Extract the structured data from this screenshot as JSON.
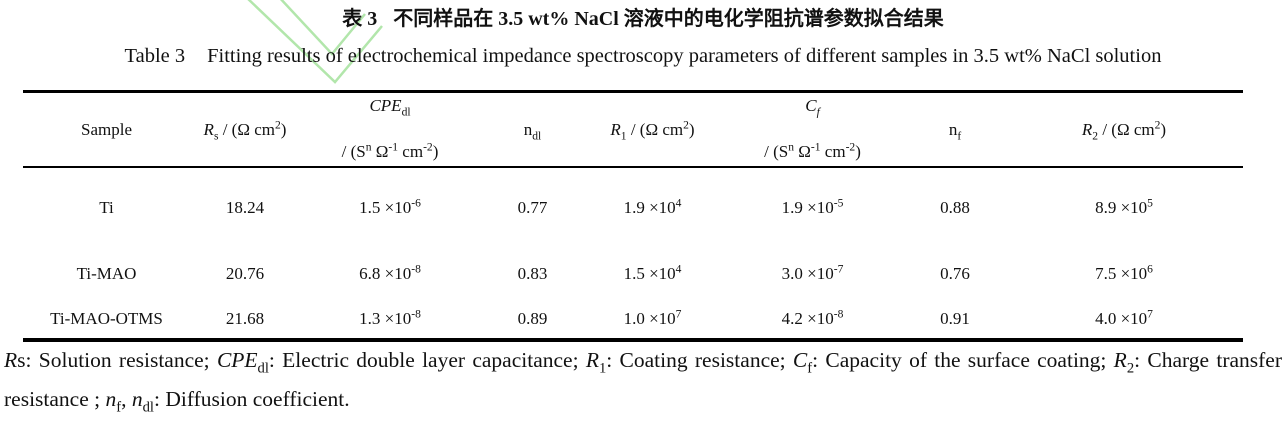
{
  "title": {
    "zh_label": "表 3",
    "zh_text": "不同样品在 3.5 wt% NaCl 溶液中的电化学阻抗谱参数拟合结果",
    "en_label": "Table 3",
    "en_text": "Fitting results of electrochemical impedance spectroscopy parameters of different samples in 3.5 wt% NaCl solution"
  },
  "watermark": {
    "icon": "green-check-watermark",
    "color": "#b2e6ab"
  },
  "table": {
    "headers": {
      "sample": {
        "line1": [
          {
            "t": "Sample"
          }
        ]
      },
      "rs": {
        "line1": [
          {
            "t": "R",
            "i": 1
          },
          {
            "t": "s",
            "sub": 1
          },
          {
            "t": " / (Ω cm"
          },
          {
            "t": "2",
            "sup": 1
          },
          {
            "t": ")"
          }
        ]
      },
      "cpe": {
        "line1": [
          {
            "t": "CPE",
            "i": 1
          },
          {
            "t": "dl",
            "sub": 1
          }
        ],
        "line2": [
          {
            "t": "/ (S"
          },
          {
            "t": "n",
            "sup": 1
          },
          {
            "t": " Ω"
          },
          {
            "t": "-1",
            "sup": 1
          },
          {
            "t": " cm"
          },
          {
            "t": "-2",
            "sup": 1
          },
          {
            "t": ")"
          }
        ]
      },
      "ndl": {
        "line1": [
          {
            "t": "n"
          },
          {
            "t": "dl",
            "sub": 1
          }
        ]
      },
      "r1": {
        "line1": [
          {
            "t": "R",
            "i": 1
          },
          {
            "t": "1",
            "sub": 1
          },
          {
            "t": " / (Ω cm"
          },
          {
            "t": "2",
            "sup": 1
          },
          {
            "t": ")"
          }
        ]
      },
      "cf": {
        "line1": [
          {
            "t": "C",
            "i": 1
          },
          {
            "t": "f",
            "sub": 1,
            "i": 1
          }
        ],
        "line2": [
          {
            "t": "/ (S"
          },
          {
            "t": "n",
            "sup": 1
          },
          {
            "t": " Ω"
          },
          {
            "t": "-1",
            "sup": 1
          },
          {
            "t": " cm"
          },
          {
            "t": "-2",
            "sup": 1
          },
          {
            "t": ")"
          }
        ]
      },
      "nf": {
        "line1": [
          {
            "t": "n"
          },
          {
            "t": "f",
            "sub": 1
          }
        ]
      },
      "r2": {
        "line1": [
          {
            "t": "R",
            "i": 1
          },
          {
            "t": "2",
            "sub": 1
          },
          {
            "t": " / (Ω cm"
          },
          {
            "t": "2",
            "sup": 1
          },
          {
            "t": ")"
          }
        ]
      }
    },
    "rows": [
      {
        "cells": [
          "Ti",
          "18.24",
          [
            {
              "t": "1.5 ×10"
            },
            {
              "t": "-6",
              "sup": 1
            }
          ],
          "0.77",
          [
            {
              "t": "1.9 ×10"
            },
            {
              "t": "4",
              "sup": 1
            }
          ],
          [
            {
              "t": "1.9 ×10"
            },
            {
              "t": "-5",
              "sup": 1
            }
          ],
          "0.88",
          [
            {
              "t": "8.9 ×10"
            },
            {
              "t": "5",
              "sup": 1
            }
          ]
        ]
      },
      {
        "cells": [
          "Ti-MAO",
          "20.76",
          [
            {
              "t": "6.8 ×10"
            },
            {
              "t": "-8",
              "sup": 1
            }
          ],
          "0.83",
          [
            {
              "t": "1.5 ×10"
            },
            {
              "t": "4",
              "sup": 1
            }
          ],
          [
            {
              "t": "3.0 ×10"
            },
            {
              "t": "-7",
              "sup": 1
            }
          ],
          "0.76",
          [
            {
              "t": "7.5 ×10"
            },
            {
              "t": "6",
              "sup": 1
            }
          ]
        ]
      },
      {
        "cells": [
          "Ti-MAO-OTMS",
          "21.68",
          [
            {
              "t": "1.3 ×10"
            },
            {
              "t": "-8",
              "sup": 1
            }
          ],
          "0.89",
          [
            {
              "t": "1.0 ×10"
            },
            {
              "t": "7",
              "sup": 1
            }
          ],
          [
            {
              "t": "4.2 ×10"
            },
            {
              "t": "-8",
              "sup": 1
            }
          ],
          "0.91",
          [
            {
              "t": "4.0 ×10"
            },
            {
              "t": "7",
              "sup": 1
            }
          ]
        ]
      }
    ]
  },
  "footnote": [
    {
      "t": "R",
      "i": 1
    },
    {
      "t": "s: Solution resistance; "
    },
    {
      "t": "CPE",
      "i": 1
    },
    {
      "t": "dl",
      "sub": 1
    },
    {
      "t": ": Electric double layer capacitance; "
    },
    {
      "t": "R",
      "i": 1
    },
    {
      "t": "1",
      "sub": 1
    },
    {
      "t": ": Coating resistance; "
    },
    {
      "t": "C",
      "i": 1
    },
    {
      "t": "f",
      "sub": 1
    },
    {
      "t": ": Capacity of the surface coating; "
    },
    {
      "t": "R",
      "i": 1
    },
    {
      "t": "2",
      "sub": 1
    },
    {
      "t": ": Charge transfer resistance ; "
    },
    {
      "t": "n",
      "i": 1
    },
    {
      "t": "f",
      "sub": 1
    },
    {
      "t": ", "
    },
    {
      "t": "n",
      "i": 1
    },
    {
      "t": "dl",
      "sub": 1
    },
    {
      "t": ": Diffusion coefficient."
    }
  ]
}
